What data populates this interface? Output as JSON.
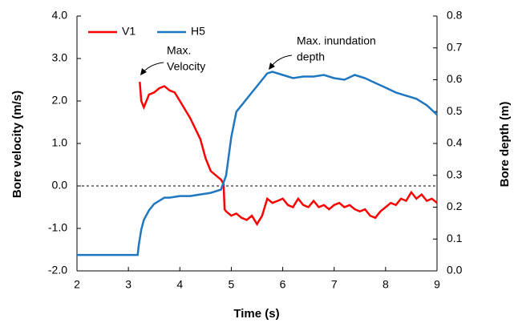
{
  "chart_data": {
    "type": "line",
    "xlabel": "Time (s)",
    "ylabel": "Bore velocity (m/s)",
    "y2label": "Bore depth (m)",
    "xlim": [
      2,
      9
    ],
    "xticks": [
      2,
      3,
      4,
      5,
      6,
      7,
      8,
      9
    ],
    "ylim": [
      -2,
      4
    ],
    "yticks": [
      {
        "value": -2,
        "label": "-2.0"
      },
      {
        "value": -1,
        "label": "-1.0"
      },
      {
        "value": 0,
        "label": "0.0"
      },
      {
        "value": 1,
        "label": "1.0"
      },
      {
        "value": 2,
        "label": "2.0"
      },
      {
        "value": 3,
        "label": "3.0"
      },
      {
        "value": 4,
        "label": "4.0"
      }
    ],
    "y2lim": [
      0,
      0.8
    ],
    "y2ticks": [
      {
        "value": 0,
        "label": "0.0"
      },
      {
        "value": 0.1,
        "label": "0.1"
      },
      {
        "value": 0.2,
        "label": "0.2"
      },
      {
        "value": 0.3,
        "label": "0.3"
      },
      {
        "value": 0.4,
        "label": "0.4"
      },
      {
        "value": 0.5,
        "label": "0.5"
      },
      {
        "value": 0.6,
        "label": "0.6"
      },
      {
        "value": 0.7,
        "label": "0.7"
      },
      {
        "value": 0.8,
        "label": "0.8"
      }
    ],
    "reference_line": 0,
    "legend": "upper left",
    "series": [
      {
        "name": "V1",
        "color": "#ff0000",
        "x": [
          3.22,
          3.25,
          3.3,
          3.4,
          3.5,
          3.6,
          3.7,
          3.8,
          3.9,
          4.0,
          4.1,
          4.2,
          4.3,
          4.4,
          4.5,
          4.6,
          4.7,
          4.8,
          4.85,
          4.87,
          4.9,
          5.0,
          5.1,
          5.2,
          5.3,
          5.4,
          5.5,
          5.6,
          5.7,
          5.8,
          5.9,
          6.0,
          6.1,
          6.2,
          6.3,
          6.4,
          6.5,
          6.6,
          6.7,
          6.8,
          6.9,
          7.0,
          7.1,
          7.2,
          7.3,
          7.4,
          7.5,
          7.6,
          7.7,
          7.8,
          7.9,
          8.0,
          8.1,
          8.2,
          8.3,
          8.4,
          8.5,
          8.6,
          8.7,
          8.8,
          8.9,
          9.0
        ],
        "values": [
          2.45,
          2.0,
          1.85,
          2.15,
          2.2,
          2.3,
          2.35,
          2.25,
          2.2,
          2.0,
          1.8,
          1.6,
          1.35,
          1.1,
          0.65,
          0.35,
          0.25,
          0.15,
          0.05,
          -0.55,
          -0.6,
          -0.7,
          -0.65,
          -0.75,
          -0.8,
          -0.7,
          -0.9,
          -0.7,
          -0.3,
          -0.4,
          -0.35,
          -0.3,
          -0.45,
          -0.5,
          -0.3,
          -0.45,
          -0.5,
          -0.35,
          -0.5,
          -0.45,
          -0.55,
          -0.45,
          -0.4,
          -0.5,
          -0.45,
          -0.55,
          -0.6,
          -0.55,
          -0.7,
          -0.75,
          -0.6,
          -0.5,
          -0.4,
          -0.45,
          -0.3,
          -0.35,
          -0.15,
          -0.3,
          -0.2,
          -0.35,
          -0.3,
          -0.4
        ]
      },
      {
        "name": "H5",
        "color": "#1f77c0",
        "axis": "y2",
        "x": [
          2.0,
          3.18,
          3.2,
          3.25,
          3.3,
          3.4,
          3.5,
          3.6,
          3.7,
          3.8,
          4.0,
          4.2,
          4.4,
          4.6,
          4.8,
          4.9,
          5.0,
          5.1,
          5.2,
          5.4,
          5.5,
          5.6,
          5.7,
          5.8,
          6.0,
          6.2,
          6.4,
          6.6,
          6.8,
          7.0,
          7.2,
          7.4,
          7.6,
          7.8,
          8.0,
          8.2,
          8.4,
          8.6,
          8.8,
          9.0
        ],
        "values": [
          0.05,
          0.05,
          0.08,
          0.13,
          0.16,
          0.19,
          0.21,
          0.22,
          0.23,
          0.23,
          0.235,
          0.235,
          0.24,
          0.245,
          0.255,
          0.3,
          0.42,
          0.5,
          0.52,
          0.56,
          0.58,
          0.6,
          0.62,
          0.625,
          0.615,
          0.605,
          0.61,
          0.61,
          0.615,
          0.605,
          0.6,
          0.615,
          0.605,
          0.59,
          0.575,
          0.56,
          0.55,
          0.54,
          0.52,
          0.49
        ]
      }
    ],
    "annotations": [
      {
        "lines": [
          "Max.",
          "Velocity"
        ]
      },
      {
        "lines": [
          "Max. inundation",
          "depth"
        ]
      }
    ]
  }
}
